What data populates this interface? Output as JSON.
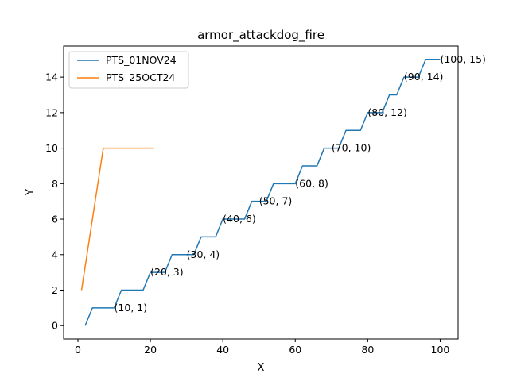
{
  "chart_data": {
    "type": "line",
    "title": "armor_attackdog_fire",
    "xlabel": "X",
    "ylabel": "Y",
    "xlim": [
      -3.95,
      104.95
    ],
    "ylim": [
      -0.75,
      15.75
    ],
    "xticks": [
      0,
      20,
      40,
      60,
      80,
      100
    ],
    "yticks": [
      0,
      2,
      4,
      6,
      8,
      10,
      12,
      14
    ],
    "grid": false,
    "legend": "top-left",
    "series": [
      {
        "name": "PTS_01NOV24",
        "color": "#1f77b4",
        "x": [
          2,
          4,
          10,
          12,
          18,
          20,
          24,
          26,
          32,
          34,
          38,
          40,
          46,
          48,
          52,
          54,
          60,
          62,
          66,
          68,
          72,
          74,
          78,
          80,
          84,
          86,
          88,
          90,
          94,
          96,
          100
        ],
        "y": [
          0,
          1,
          1,
          2,
          2,
          3,
          3,
          4,
          4,
          5,
          5,
          6,
          6,
          7,
          7,
          8,
          8,
          9,
          9,
          10,
          10,
          11,
          11,
          12,
          12,
          13,
          13,
          14,
          14,
          15,
          15
        ]
      },
      {
        "name": "PTS_25OCT24",
        "color": "#ff7f0e",
        "x": [
          1,
          7,
          21
        ],
        "y": [
          2,
          10,
          10
        ]
      }
    ],
    "annotations": [
      {
        "x": 10,
        "y": 1,
        "text": "(10, 1)"
      },
      {
        "x": 20,
        "y": 3,
        "text": "(20, 3)"
      },
      {
        "x": 30,
        "y": 4,
        "text": "(30, 4)"
      },
      {
        "x": 40,
        "y": 6,
        "text": "(40, 6)"
      },
      {
        "x": 50,
        "y": 7,
        "text": "(50, 7)"
      },
      {
        "x": 60,
        "y": 8,
        "text": "(60, 8)"
      },
      {
        "x": 70,
        "y": 10,
        "text": "(70, 10)"
      },
      {
        "x": 80,
        "y": 12,
        "text": "(80, 12)"
      },
      {
        "x": 90,
        "y": 14,
        "text": "(90, 14)"
      },
      {
        "x": 100,
        "y": 15,
        "text": "(100, 15)"
      }
    ]
  }
}
